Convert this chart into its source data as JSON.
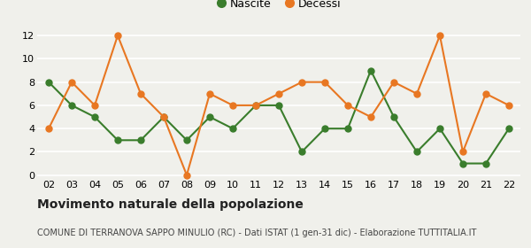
{
  "years": [
    "02",
    "03",
    "04",
    "05",
    "06",
    "07",
    "08",
    "09",
    "10",
    "11",
    "12",
    "13",
    "14",
    "15",
    "16",
    "17",
    "18",
    "19",
    "20",
    "21",
    "22"
  ],
  "nascite": [
    8,
    6,
    5,
    3,
    3,
    5,
    3,
    5,
    4,
    6,
    6,
    2,
    4,
    4,
    9,
    5,
    2,
    4,
    1,
    1,
    4
  ],
  "decessi": [
    4,
    8,
    6,
    12,
    7,
    5,
    0,
    7,
    6,
    6,
    7,
    8,
    8,
    6,
    5,
    8,
    7,
    12,
    2,
    7,
    6
  ],
  "nascite_color": "#3a7d2c",
  "decessi_color": "#e87722",
  "background_color": "#f0f0eb",
  "grid_color": "#ffffff",
  "title": "Movimento naturale della popolazione",
  "subtitle": "COMUNE DI TERRANOVA SAPPO MINULIO (RC) - Dati ISTAT (1 gen-31 dic) - Elaborazione TUTTITALIA.IT",
  "legend_nascite": "Nascite",
  "legend_decessi": "Decessi",
  "ylim": [
    0,
    12
  ],
  "yticks": [
    0,
    2,
    4,
    6,
    8,
    10,
    12
  ],
  "title_fontsize": 10,
  "subtitle_fontsize": 7,
  "tick_fontsize": 8,
  "legend_fontsize": 9,
  "line_width": 1.5,
  "marker_size": 5
}
